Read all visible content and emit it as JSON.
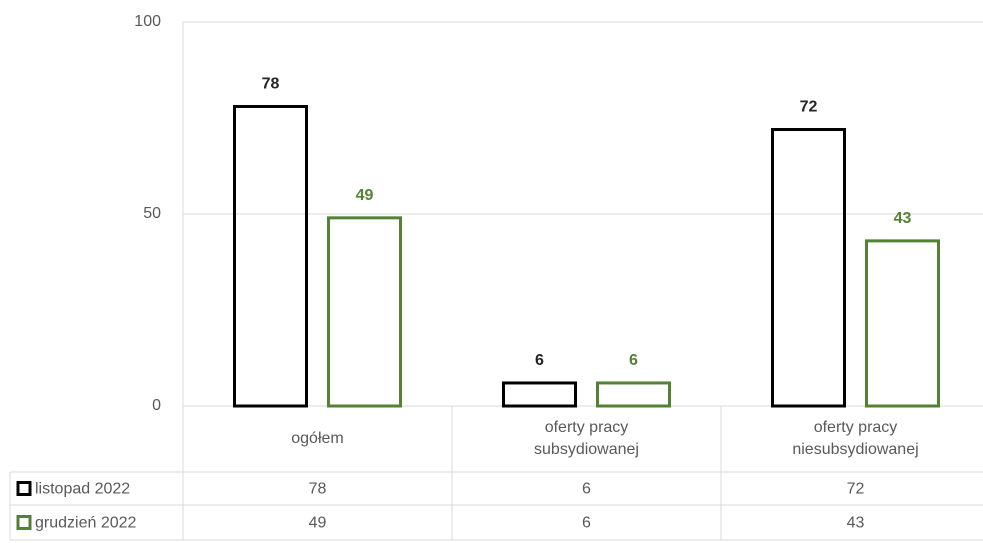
{
  "chart_data": {
    "type": "bar",
    "categories": [
      "ogółem",
      "oferty pracy subsydiowanej",
      "oferty pracy niesubsydiowanej"
    ],
    "series": [
      {
        "name": "listopad 2022",
        "color": "#000000",
        "values": [
          78,
          6,
          72
        ]
      },
      {
        "name": "grudzień 2022",
        "color": "#548235",
        "values": [
          49,
          6,
          43
        ]
      }
    ],
    "ylim": [
      0,
      100
    ],
    "yticks": [
      0,
      50,
      100
    ],
    "grid": true,
    "data_table": true
  }
}
